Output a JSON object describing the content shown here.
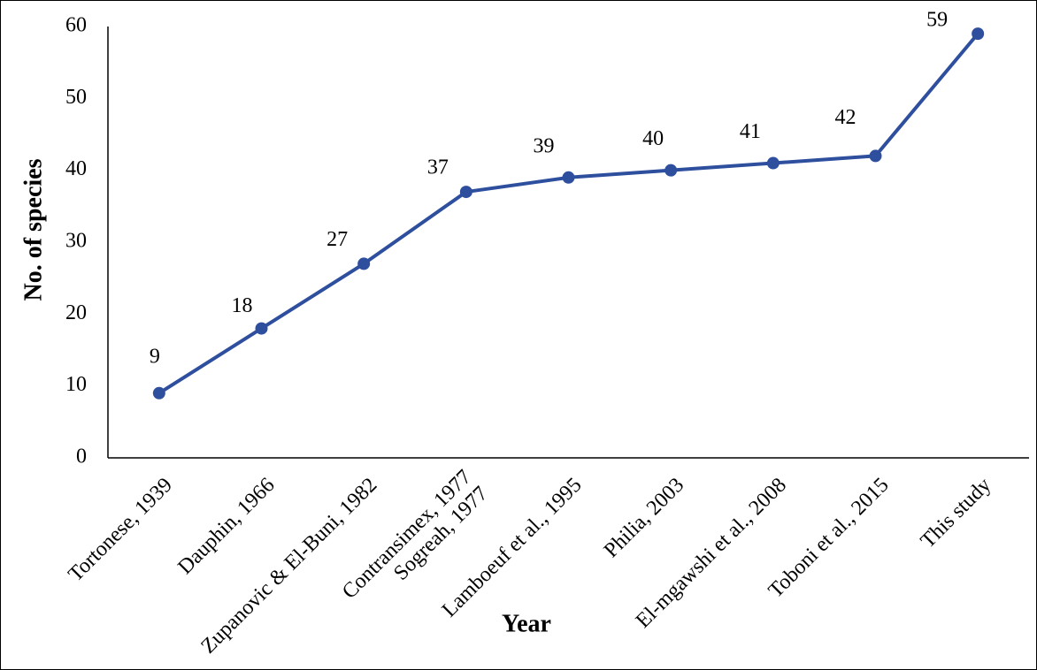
{
  "chart_data": {
    "type": "line",
    "x_label": "Year",
    "y_label": "No. of species",
    "categories": [
      "Tortonese, 1939",
      "Dauphin, 1966",
      "Zupanovic & El-Buni, 1982",
      "Contransimex, 1977\nSogreah, 1977",
      "Lamboeuf et al., 1995",
      "Philia, 2003",
      "El-mgawshi et al., 2008",
      "Toboni et al., 2015",
      "This study"
    ],
    "series": [
      {
        "name": "No. of species",
        "color": "#2e4f9e",
        "values": [
          9,
          18,
          27,
          37,
          39,
          40,
          41,
          42,
          59
        ]
      }
    ],
    "ylim": [
      0,
      60
    ],
    "yticks": [
      0,
      10,
      20,
      30,
      40,
      50,
      60
    ],
    "grid": false
  }
}
